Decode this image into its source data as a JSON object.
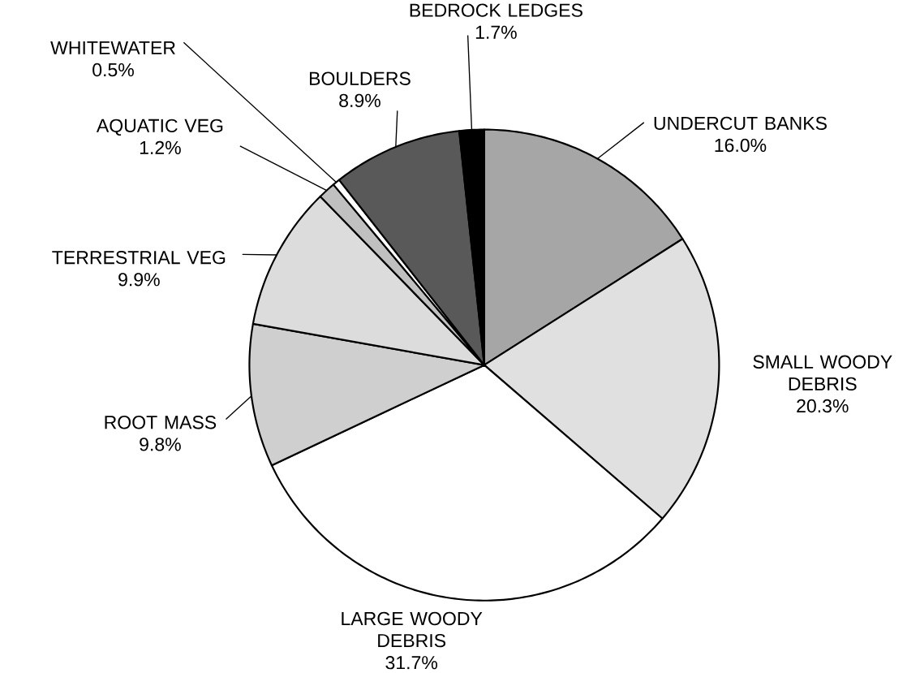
{
  "chart_data": {
    "type": "pie",
    "categories": [
      "UNDERCUT BANKS",
      "SMALL WOODY DEBRIS",
      "LARGE WOODY DEBRIS",
      "ROOT MASS",
      "TERRESTRIAL VEG",
      "AQUATIC VEG",
      "WHITEWATER",
      "BOULDERS",
      "BEDROCK LEDGES"
    ],
    "values": [
      16.0,
      20.3,
      31.7,
      9.8,
      9.9,
      1.2,
      0.5,
      8.9,
      1.7
    ],
    "value_labels": [
      "16.0%",
      "20.3%",
      "31.7%",
      "9.8%",
      "9.9%",
      "1.2%",
      "0.5%",
      "8.9%",
      "1.7%"
    ],
    "colors": [
      "#a6a6a6",
      "#e0e0e0",
      "#ffffff",
      "#cfcfcf",
      "#dcdcdc",
      "#c0c0c0",
      "#ffffff",
      "#595959",
      "#000000"
    ]
  }
}
